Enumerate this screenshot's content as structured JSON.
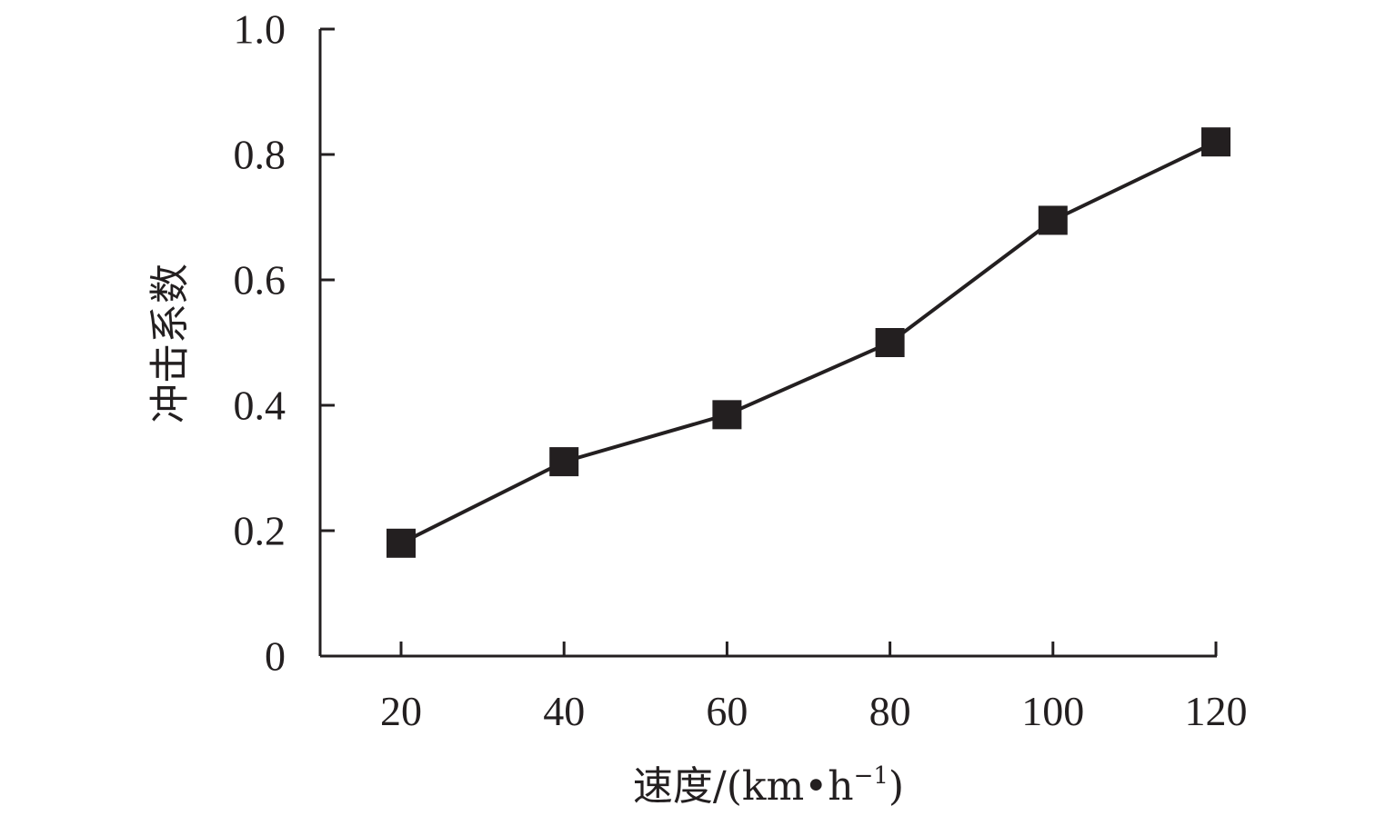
{
  "chart_data": {
    "type": "line",
    "title": "",
    "xlabel": "速度/(km•h",
    "xlabel_superscript": "−1",
    "xlabel_close": ")",
    "ylabel": "冲击系数",
    "x": [
      20,
      40,
      60,
      80,
      100,
      120
    ],
    "x_tick_labels": [
      "20",
      "40",
      "60",
      "80",
      "100",
      "120"
    ],
    "y_tick_labels": [
      "0",
      "0.2",
      "0.4",
      "0.6",
      "0.8",
      "1.0"
    ],
    "xlim": [
      10,
      120
    ],
    "ylim": [
      0,
      1.0
    ],
    "yticks": [
      0,
      0.2,
      0.4,
      0.6,
      0.8,
      1.0
    ],
    "grid": false,
    "series": [
      {
        "values": [
          0.18,
          0.31,
          0.385,
          0.5,
          0.695,
          0.82
        ],
        "marker": "square",
        "color": "#231f20"
      }
    ]
  }
}
